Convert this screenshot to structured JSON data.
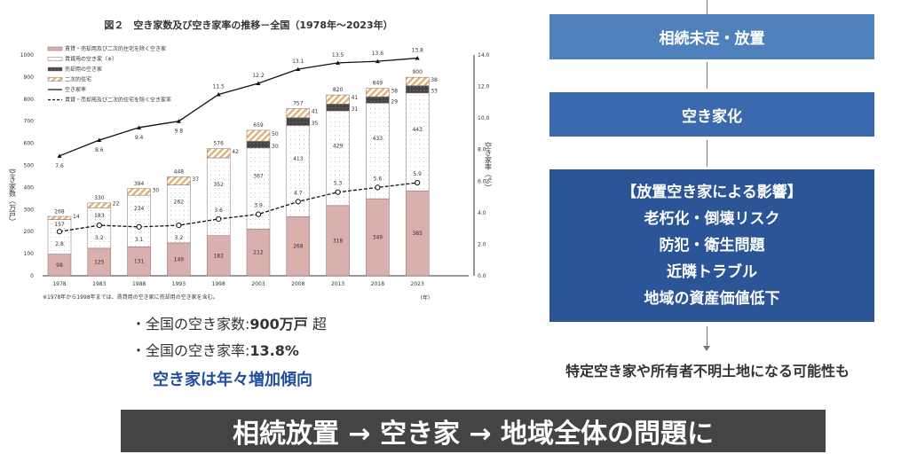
{
  "chart_data": {
    "type": "bar",
    "title": "図２　空き家数及び空き家率の推移－全国（1978年～2023年）",
    "ylabel": "空き家数（万戸）",
    "y2label": "空き家率（%）",
    "xunit": "（年）",
    "footnote": "※1978年から1998年までは、賃貸用の空き家に売却用の空き家を含む。",
    "ylim": [
      0,
      1000
    ],
    "yticks": [
      0,
      100,
      200,
      300,
      400,
      500,
      600,
      700,
      800,
      900,
      1000
    ],
    "y2lim": [
      0,
      14
    ],
    "y2ticks": [
      "0.0",
      "2.0",
      "4.0",
      "6.0",
      "8.0",
      "10.0",
      "12.0",
      "14.0"
    ],
    "legend_placement": "top-left",
    "categories": [
      "1978",
      "1983",
      "1988",
      "1993",
      "1998",
      "2003",
      "2008",
      "2013",
      "2018",
      "2023"
    ],
    "totals": [
      268,
      330,
      394,
      448,
      576,
      659,
      757,
      820,
      849,
      900
    ],
    "series": [
      {
        "name": "賃貸・売却用及び二次的住宅を除く空き家",
        "kind": "bar",
        "color": "#d9b0ad",
        "values": [
          98,
          125,
          131,
          149,
          182,
          212,
          268,
          318,
          349,
          385
        ]
      },
      {
        "name": "賃貸用の空き家（※）",
        "kind": "bar",
        "color": "#ffffff",
        "values": [
          157,
          183,
          234,
          262,
          352,
          367,
          413,
          429,
          433,
          443
        ]
      },
      {
        "name": "売却用の空き家",
        "kind": "bar",
        "color": "#4a4a4a",
        "values": [
          null,
          null,
          null,
          null,
          null,
          30,
          35,
          31,
          29,
          33
        ]
      },
      {
        "name": "二次的住宅",
        "kind": "bar",
        "color": "#e8c48f",
        "values": [
          14,
          22,
          30,
          37,
          42,
          50,
          41,
          41,
          38,
          38
        ]
      },
      {
        "name": "空き家率",
        "kind": "line",
        "axis": "right",
        "values": [
          7.6,
          8.6,
          9.4,
          9.8,
          11.5,
          12.2,
          13.1,
          13.5,
          13.6,
          13.8
        ]
      },
      {
        "name": "賃貸・売却用及び二次的住宅を除く空き家率",
        "kind": "line-dashed",
        "axis": "right",
        "values": [
          2.8,
          3.2,
          3.1,
          3.2,
          3.6,
          3.9,
          4.7,
          5.3,
          5.6,
          5.9
        ]
      }
    ]
  },
  "summary": {
    "line1_prefix": "・全国の空き家数:",
    "line1_value": "900万戸",
    "line1_suffix": "超",
    "line2_prefix": "・全国の空き家率:",
    "line2_value": "13.8%",
    "trend": "空き家は年々増加傾向"
  },
  "flow": {
    "step1": "相続未定・放置",
    "step2": "空き家化",
    "impact_title": "【放置空き家による影響】",
    "impacts": [
      "老朽化・倒壊リスク",
      "防犯・衛生問題",
      "近隣トラブル",
      "地域の資産価値低下"
    ],
    "result": "特定空き家や所有者不明土地になる可能性も"
  },
  "banner": "相続放置 → 空き家 → 地域全体の問題に",
  "colors": {
    "box1": "#4f81bd",
    "box2": "#3a6aad",
    "box3": "#2b5597",
    "banner": "#444444",
    "trend": "#1f4e9c"
  }
}
